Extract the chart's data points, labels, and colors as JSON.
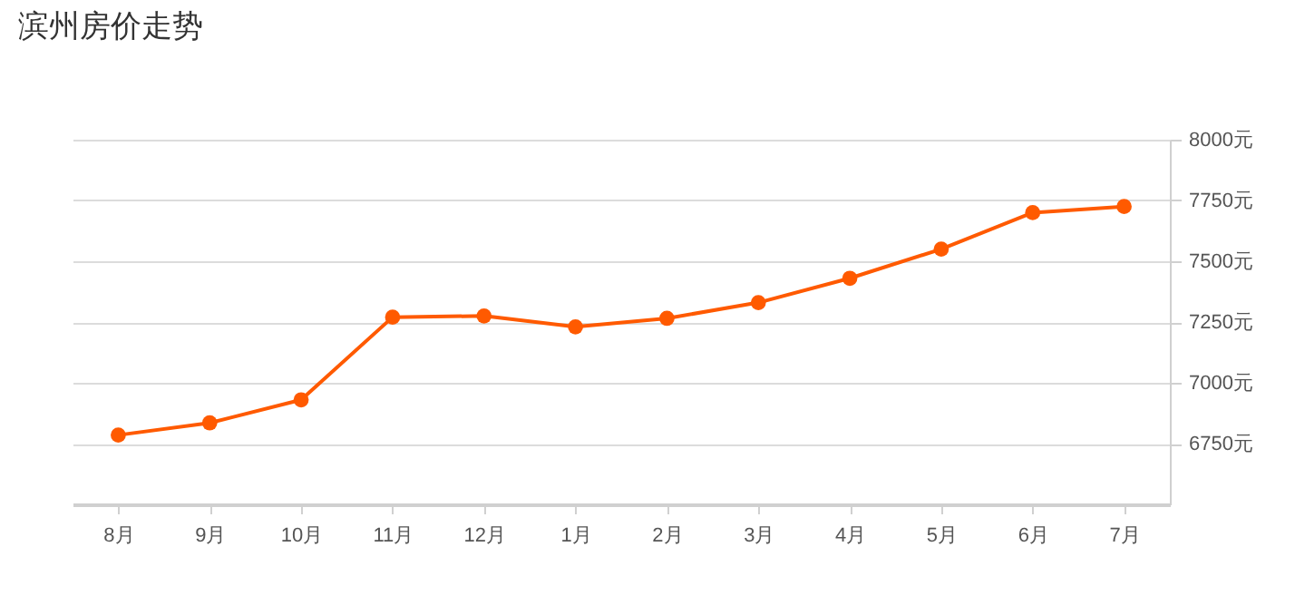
{
  "chart_data": {
    "type": "line",
    "title": "滨州房价走势",
    "categories": [
      "8月",
      "9月",
      "10月",
      "11月",
      "12月",
      "1月",
      "2月",
      "3月",
      "4月",
      "5月",
      "6月",
      "7月"
    ],
    "series": [
      {
        "color": "#ff5a00",
        "values": [
          6785,
          6835,
          6930,
          7270,
          7275,
          7230,
          7265,
          7330,
          7430,
          7550,
          7700,
          7725
        ]
      }
    ],
    "ylim": [
      6500,
      8000
    ],
    "yticks": [
      {
        "value": 6750,
        "label": "6750元"
      },
      {
        "value": 7000,
        "label": "7000元"
      },
      {
        "value": 7250,
        "label": "7250元"
      },
      {
        "value": 7500,
        "label": "7500元"
      },
      {
        "value": 7750,
        "label": "7750元"
      },
      {
        "value": 8000,
        "label": "8000元"
      }
    ],
    "grid": "y",
    "marker": "circle",
    "line_style": "solid"
  }
}
